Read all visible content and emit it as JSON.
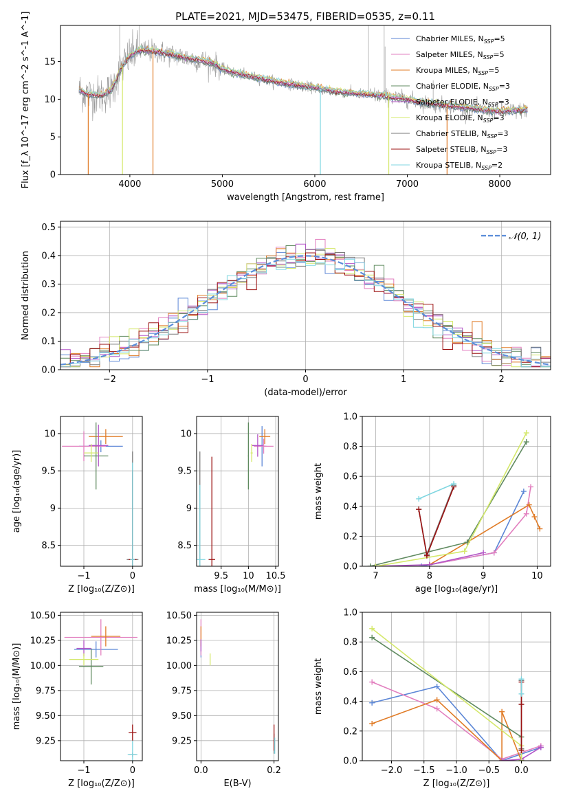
{
  "figure_title": "PLATE=2021, MJD=53475, FIBERID=0535, z=0.11",
  "colors": {
    "Chabrier MILES": "#5b86d6",
    "Salpeter MILES": "#e27fbf",
    "Kroupa MILES": "#e07b26",
    "Chabrier ELODIE": "#5f8a5f",
    "Salpeter ELODIE": "#b355c7",
    "Kroupa ELODIE": "#d4e86a",
    "Chabrier STELIB": "#7a7a7a",
    "Salpeter STELIB": "#9b1111",
    "Kroupa STELIB": "#7fd6e0",
    "observed": "#999999",
    "gaussian": "#5b8dd9"
  },
  "chart_data": [
    {
      "id": "spectrum",
      "type": "line",
      "title": "",
      "xlabel": "wavelength [Angstrom, rest frame]",
      "ylabel": "Flux [f_λ 10^-17 erg cm^-2 s^-1 A^-1]",
      "xlim": [
        3250,
        8550
      ],
      "ylim": [
        0,
        19.8
      ],
      "xticks": [
        4000,
        5000,
        6000,
        7000,
        8000
      ],
      "yticks": [
        0,
        5,
        10,
        15
      ],
      "grid": false,
      "legend_position": "top-right",
      "legend": [
        {
          "main": "Chabrier MILES, N",
          "sub": "SSP",
          "tail": "=5",
          "color": "#5b86d6"
        },
        {
          "main": "Salpeter MILES, N",
          "sub": "SSP",
          "tail": "=5",
          "color": "#e27fbf"
        },
        {
          "main": "Kroupa MILES, N",
          "sub": "SSP",
          "tail": "=5",
          "color": "#e07b26"
        },
        {
          "main": "Chabrier ELODIE, N",
          "sub": "SSP",
          "tail": "=3",
          "color": "#5f8a5f"
        },
        {
          "main": "Salpeter ELODIE, N",
          "sub": "SSP",
          "tail": "=3",
          "color": "#b355c7"
        },
        {
          "main": "Kroupa ELODIE, N",
          "sub": "SSP",
          "tail": "=3",
          "color": "#d4e86a"
        },
        {
          "main": "Chabrier STELIB, N",
          "sub": "SSP",
          "tail": "=3",
          "color": "#7a7a7a"
        },
        {
          "main": "Salpeter STELIB, N",
          "sub": "SSP",
          "tail": "=3",
          "color": "#9b1111"
        },
        {
          "main": "Kroupa STELIB, N",
          "sub": "SSP",
          "tail": "=2",
          "color": "#7fd6e0"
        }
      ],
      "continuum": [
        [
          3450,
          11.2
        ],
        [
          3550,
          10.6
        ],
        [
          3700,
          10.5
        ],
        [
          3800,
          11.2
        ],
        [
          3900,
          14.0
        ],
        [
          4000,
          15.8
        ],
        [
          4100,
          16.5
        ],
        [
          4300,
          16.3
        ],
        [
          4500,
          15.8
        ],
        [
          4700,
          15.3
        ],
        [
          4900,
          14.8
        ],
        [
          5000,
          14.0
        ],
        [
          5200,
          13.3
        ],
        [
          5400,
          12.8
        ],
        [
          5600,
          12.3
        ],
        [
          5800,
          11.9
        ],
        [
          6000,
          11.5
        ],
        [
          6200,
          11.1
        ],
        [
          6400,
          10.8
        ],
        [
          6600,
          10.6
        ],
        [
          6800,
          10.3
        ],
        [
          7000,
          10.0
        ],
        [
          7200,
          9.5
        ],
        [
          7400,
          9.2
        ],
        [
          7600,
          8.9
        ],
        [
          7800,
          8.6
        ],
        [
          8000,
          8.4
        ],
        [
          8200,
          8.5
        ],
        [
          8300,
          8.6
        ]
      ],
      "absorption_drops": [
        {
          "x": 3550,
          "to": 0,
          "color": "#e07b26"
        },
        {
          "x": 3920,
          "to": 0,
          "color": "#d4e86a"
        },
        {
          "x": 4250,
          "to": 0,
          "color": "#e07b26"
        },
        {
          "x": 6060,
          "to": 0,
          "color": "#7fd6e0"
        },
        {
          "x": 6800,
          "to": 0,
          "color": "#d4e86a"
        },
        {
          "x": 7430,
          "to": 0,
          "color": "#e07b26"
        }
      ]
    },
    {
      "id": "residuals",
      "type": "histogram",
      "xlabel": "(data-model)/error",
      "ylabel": "Normed distribution",
      "xlim": [
        -2.5,
        2.5
      ],
      "ylim": [
        0,
        0.52
      ],
      "xticks": [
        -2,
        -1,
        0,
        1,
        2
      ],
      "yticks": [
        0.0,
        0.1,
        0.2,
        0.3,
        0.4,
        0.5
      ],
      "ytick_labels": [
        "0.0",
        "0.1",
        "0.2",
        "0.3",
        "0.4",
        "0.5"
      ],
      "grid": true,
      "legend_position": "top-right",
      "gaussian_label": "𝒩(0, 1)",
      "bin_width": 0.1
    },
    {
      "id": "age_vs_Z",
      "type": "errorbar",
      "xlabel": "Z [log10(Z/Z⊙)]",
      "ylabel": "age [log10(age/yr)]",
      "xlim": [
        -1.48,
        0.2
      ],
      "ylim": [
        8.22,
        10.23
      ],
      "xticks": [
        -1,
        0
      ],
      "yticks": [
        8.5,
        9.0,
        9.5,
        10.0
      ],
      "grid": true,
      "points": [
        {
          "x": -0.65,
          "y": 9.83,
          "xerr": 0.45,
          "yerr": 0.08,
          "color": "#5b86d6"
        },
        {
          "x": -1.0,
          "y": 9.83,
          "xerr": 0.45,
          "yerr": 0.2,
          "color": "#e27fbf"
        },
        {
          "x": -0.55,
          "y": 9.96,
          "xerr": 0.35,
          "yerr": 0.1,
          "color": "#e07b26"
        },
        {
          "x": -0.75,
          "y": 9.7,
          "xerr": 0.25,
          "yerr": 0.45,
          "color": "#5f8a5f"
        },
        {
          "x": -0.7,
          "y": 9.84,
          "xerr": 0.2,
          "yerr": 0.28,
          "color": "#b355c7"
        },
        {
          "x": -0.85,
          "y": 9.74,
          "xerr": 0.15,
          "yerr": 0.12,
          "color": "#d4e86a"
        },
        {
          "x": 0.0,
          "y": 8.31,
          "xerr": 0.12,
          "yerr": 1.45,
          "color": "#7a7a7a"
        },
        {
          "x": 0.0,
          "y": 8.31,
          "xerr": 0.08,
          "yerr": 1.2,
          "color": "#9b1111"
        },
        {
          "x": 0.0,
          "y": 8.31,
          "xerr": 0.05,
          "yerr": 1.3,
          "color": "#7fd6e0"
        }
      ]
    },
    {
      "id": "age_vs_mass",
      "type": "errorbar",
      "xlabel": "mass [log10(M/M⊙)]",
      "ylabel": "",
      "xlim": [
        9.05,
        10.55
      ],
      "ylim": [
        8.22,
        10.23
      ],
      "xticks": [
        9.5,
        10.0,
        10.5
      ],
      "yticks": [
        8.5,
        9.0,
        9.5,
        10.0
      ],
      "grid": true,
      "points": [
        {
          "x": 10.25,
          "y": 9.83,
          "xerr": 0.08,
          "yerr": 0.27,
          "color": "#5b86d6"
        },
        {
          "x": 10.28,
          "y": 9.83,
          "xerr": 0.18,
          "yerr": 0.1,
          "color": "#e27fbf"
        },
        {
          "x": 10.3,
          "y": 9.96,
          "xerr": 0.1,
          "yerr": 0.1,
          "color": "#e07b26"
        },
        {
          "x": 10.0,
          "y": 9.7,
          "xerr": 0.01,
          "yerr": 0.45,
          "color": "#5f8a5f"
        },
        {
          "x": 10.17,
          "y": 9.84,
          "xerr": 0.1,
          "yerr": 0.15,
          "color": "#b355c7"
        },
        {
          "x": 10.06,
          "y": 9.74,
          "xerr": 0.02,
          "yerr": 0.12,
          "color": "#d4e86a"
        },
        {
          "x": 9.11,
          "y": 8.31,
          "xerr": 0.01,
          "yerr": 1.45,
          "color": "#7a7a7a"
        },
        {
          "x": 9.33,
          "y": 8.31,
          "xerr": 0.06,
          "yerr": 1.38,
          "color": "#9b1111"
        },
        {
          "x": 9.11,
          "y": 8.31,
          "xerr": 0.1,
          "yerr": 1.0,
          "color": "#7fd6e0"
        }
      ]
    },
    {
      "id": "weight_vs_age",
      "type": "line",
      "xlabel": "age [log10(age/yr)]",
      "ylabel": "mass weight",
      "xlim": [
        6.75,
        10.25
      ],
      "ylim": [
        0,
        1.0
      ],
      "xticks": [
        7,
        8,
        9,
        10
      ],
      "yticks": [
        0.0,
        0.2,
        0.4,
        0.6,
        0.8,
        1.0
      ],
      "ytick_labels": [
        "0.0",
        "0.2",
        "0.4",
        "0.6",
        "0.8",
        "1.0"
      ],
      "grid": true,
      "series": [
        {
          "color": "#5b86d6",
          "x": [
            7.85,
            9.2,
            9.75
          ],
          "y": [
            0.0,
            0.09,
            0.5
          ]
        },
        {
          "color": "#e27fbf",
          "x": [
            8.0,
            9.2,
            9.8,
            9.88
          ],
          "y": [
            0.01,
            0.09,
            0.35,
            0.53
          ]
        },
        {
          "color": "#e07b26",
          "x": [
            8.0,
            8.7,
            9.85,
            9.95,
            10.05
          ],
          "y": [
            0.01,
            0.16,
            0.41,
            0.33,
            0.25
          ]
        },
        {
          "color": "#5f8a5f",
          "x": [
            6.9,
            8.7,
            9.8
          ],
          "y": [
            0.0,
            0.16,
            0.83
          ]
        },
        {
          "color": "#b355c7",
          "x": [
            7.0,
            8.0,
            9.0
          ],
          "y": [
            0.0,
            0.01,
            0.09
          ]
        },
        {
          "color": "#d4e86a",
          "x": [
            7.0,
            8.65,
            9.8
          ],
          "y": [
            0.0,
            0.1,
            0.89
          ]
        },
        {
          "color": "#7a7a7a",
          "x": [
            7.8,
            7.95,
            8.45
          ],
          "y": [
            0.38,
            0.08,
            0.54
          ]
        },
        {
          "color": "#9b1111",
          "x": [
            7.8,
            7.95,
            8.45
          ],
          "y": [
            0.38,
            0.07,
            0.53
          ]
        },
        {
          "color": "#7fd6e0",
          "x": [
            7.8,
            8.45
          ],
          "y": [
            0.45,
            0.55
          ]
        }
      ]
    },
    {
      "id": "mass_vs_Z",
      "type": "errorbar",
      "xlabel": "Z [log10(Z/Z⊙)]",
      "ylabel": "mass [log10(M/M⊙)]",
      "xlim": [
        -1.48,
        0.2
      ],
      "ylim": [
        9.05,
        10.53
      ],
      "xticks": [
        -1,
        0
      ],
      "yticks": [
        9.25,
        9.5,
        9.75,
        10.0,
        10.25,
        10.5
      ],
      "ytick_labels": [
        "9.25",
        "9.50",
        "9.75",
        "10.00",
        "10.25",
        "10.50"
      ],
      "grid": true,
      "points": [
        {
          "x": -0.75,
          "y": 10.16,
          "xerr": 0.45,
          "yerr": 0.08,
          "color": "#5b86d6"
        },
        {
          "x": -0.65,
          "y": 10.28,
          "xerr": 0.75,
          "yerr": 0.18,
          "color": "#e27fbf"
        },
        {
          "x": -0.55,
          "y": 10.29,
          "xerr": 0.3,
          "yerr": 0.1,
          "color": "#e07b26"
        },
        {
          "x": -0.85,
          "y": 9.99,
          "xerr": 0.25,
          "yerr": 0.18,
          "color": "#5f8a5f"
        },
        {
          "x": -1.0,
          "y": 10.17,
          "xerr": 0.15,
          "yerr": 0.08,
          "color": "#b355c7"
        },
        {
          "x": -1.0,
          "y": 10.06,
          "xerr": 0.3,
          "yerr": 0.06,
          "color": "#d4e86a"
        },
        {
          "x": 0.0,
          "y": 9.11,
          "xerr": 0.08,
          "yerr": 0.02,
          "color": "#7a7a7a"
        },
        {
          "x": 0.0,
          "y": 9.33,
          "xerr": 0.08,
          "yerr": 0.08,
          "color": "#9b1111"
        },
        {
          "x": 0.0,
          "y": 9.11,
          "xerr": 0.1,
          "yerr": 0.14,
          "color": "#7fd6e0"
        }
      ]
    },
    {
      "id": "mass_vs_EBV",
      "type": "errorbar",
      "xlabel": "E(B-V)",
      "ylabel": "",
      "xlim": [
        -0.012,
        0.212
      ],
      "ylim": [
        9.05,
        10.53
      ],
      "xticks": [
        0.0,
        0.2
      ],
      "xtick_labels": [
        "0.0",
        "0.2"
      ],
      "yticks": [
        9.25,
        9.5,
        9.75,
        10.0,
        10.25,
        10.5
      ],
      "ytick_labels": [
        "9.25",
        "9.50",
        "9.75",
        "10.00",
        "10.25",
        "10.50"
      ],
      "grid": true,
      "points": [
        {
          "x": 0.0,
          "y": 10.16,
          "xerr": 0,
          "yerr": 0.08,
          "color": "#5b86d6"
        },
        {
          "x": 0.0,
          "y": 10.28,
          "xerr": 0,
          "yerr": 0.18,
          "color": "#e27fbf"
        },
        {
          "x": 0.0,
          "y": 10.29,
          "xerr": 0,
          "yerr": 0.1,
          "color": "#e07b26"
        },
        {
          "x": 0.0,
          "y": 10.2,
          "xerr": 0,
          "yerr": 0.06,
          "color": "#b355c7"
        },
        {
          "x": 0.025,
          "y": 10.06,
          "xerr": 0,
          "yerr": 0.06,
          "color": "#d4e86a"
        },
        {
          "x": 0.2,
          "y": 9.22,
          "xerr": 0,
          "yerr": 0.1,
          "color": "#7a7a7a"
        },
        {
          "x": 0.2,
          "y": 9.28,
          "xerr": 0,
          "yerr": 0.13,
          "color": "#9b1111"
        },
        {
          "x": 0.202,
          "y": 9.2,
          "xerr": 0,
          "yerr": 0.08,
          "color": "#7fd6e0"
        }
      ]
    },
    {
      "id": "weight_vs_Z",
      "type": "line",
      "xlabel": "Z [log10(Z/Z⊙)]",
      "ylabel": "mass weight",
      "xlim": [
        -2.45,
        0.45
      ],
      "ylim": [
        0,
        1.0
      ],
      "xticks": [
        -2.0,
        -1.5,
        -1.0,
        -0.5,
        0.0
      ],
      "xtick_labels": [
        "−2.0",
        "−1.5",
        "−1.0",
        "−0.5",
        "0.0"
      ],
      "yticks": [
        0.0,
        0.2,
        0.4,
        0.6,
        0.8,
        1.0
      ],
      "ytick_labels": [
        "0.0",
        "0.2",
        "0.4",
        "0.6",
        "0.8",
        "1.0"
      ],
      "grid": true,
      "series": [
        {
          "color": "#5b86d6",
          "x": [
            -2.3,
            -1.3,
            -0.3,
            0.3
          ],
          "y": [
            0.39,
            0.5,
            0.0,
            0.09
          ]
        },
        {
          "color": "#e27fbf",
          "x": [
            -2.3,
            -1.3,
            -0.3,
            0.3
          ],
          "y": [
            0.53,
            0.35,
            0.01,
            0.1
          ]
        },
        {
          "color": "#e07b26",
          "x": [
            -2.3,
            -1.3,
            -0.3,
            -0.3,
            0.0
          ],
          "y": [
            0.25,
            0.41,
            0.0,
            0.33,
            0.0
          ]
        },
        {
          "color": "#5f8a5f",
          "x": [
            -2.3,
            0.0,
            0.0
          ],
          "y": [
            0.83,
            0.16,
            0.0
          ]
        },
        {
          "color": "#b355c7",
          "x": [
            -0.3,
            0.0,
            0.3
          ],
          "y": [
            0.0,
            0.01,
            0.09
          ]
        },
        {
          "color": "#d4e86a",
          "x": [
            -2.3,
            0.0,
            0.0
          ],
          "y": [
            0.89,
            0.1,
            0.0
          ]
        },
        {
          "color": "#7a7a7a",
          "x": [
            0.0,
            0.0,
            0.0
          ],
          "y": [
            0.54,
            0.08,
            0.38
          ]
        },
        {
          "color": "#9b1111",
          "x": [
            0.0,
            0.0,
            0.0
          ],
          "y": [
            0.53,
            0.07,
            0.38
          ]
        },
        {
          "color": "#7fd6e0",
          "x": [
            0.0,
            0.0
          ],
          "y": [
            0.55,
            0.45
          ]
        }
      ]
    }
  ]
}
